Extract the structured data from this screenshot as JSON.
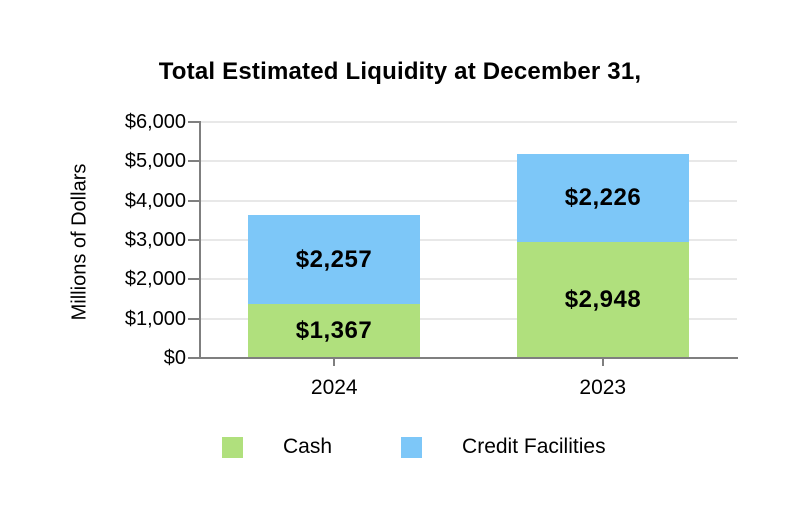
{
  "chart_data": {
    "type": "bar",
    "stacked": true,
    "title": "Total Estimated Liquidity at December 31,",
    "ylabel": "Millions of Dollars",
    "categories": [
      "2024",
      "2023"
    ],
    "series": [
      {
        "name": "Cash",
        "color": "#B0E07D",
        "values": [
          1367,
          2948
        ],
        "labels": [
          "$1,367",
          "$2,948"
        ]
      },
      {
        "name": "Credit Facilities",
        "color": "#7DC7F8",
        "values": [
          2257,
          2226
        ],
        "labels": [
          "$2,257",
          "$2,226"
        ]
      }
    ],
    "totals": [
      3624,
      5174
    ],
    "ylim": [
      0,
      6000
    ],
    "ytick_interval": 1000,
    "ytick_labels": [
      "$0",
      "$1,000",
      "$2,000",
      "$3,000",
      "$4,000",
      "$5,000",
      "$6,000"
    ],
    "grid": true,
    "legend_position": "bottom",
    "colors": {
      "axis": "#7F7F7F",
      "gridline": "#E8E8E8",
      "label_text": "#000000",
      "background": "#FFFFFF"
    }
  }
}
